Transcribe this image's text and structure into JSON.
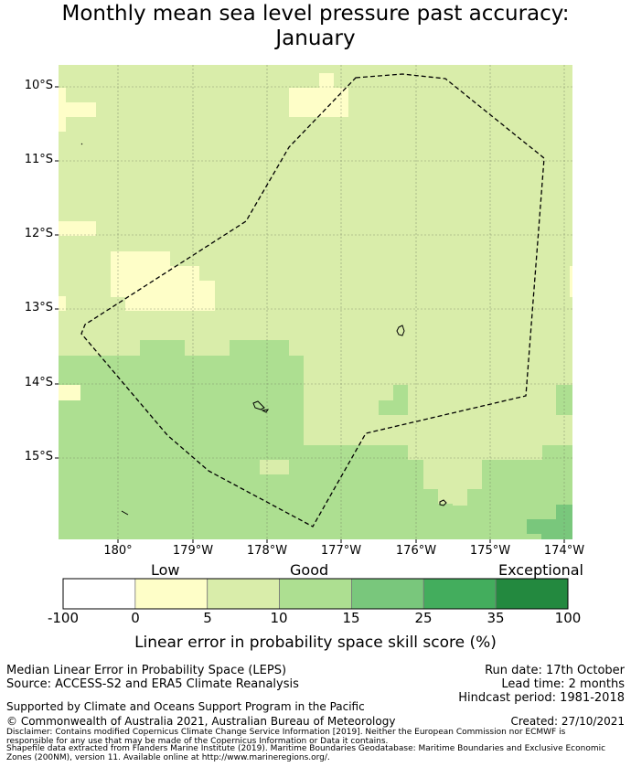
{
  "title_line1": "Monthly mean sea level pressure past accuracy:",
  "title_line2": "January",
  "map": {
    "lat_labels": [
      "10°S",
      "11°S",
      "12°S",
      "13°S",
      "14°S",
      "15°S"
    ],
    "lon_labels": [
      "180°",
      "179°W",
      "178°W",
      "177°W",
      "176°W",
      "175°W",
      "174°W"
    ],
    "colors": {
      "low": "#fefec8",
      "good": "#d9edaa",
      "good_plus": "#addf91",
      "strong": "#79c77c",
      "exceptional": "#23893f"
    }
  },
  "colorbar": {
    "category_labels": [
      "Low",
      "Good",
      "Exceptional"
    ],
    "tick_labels": [
      "-100",
      "0",
      "5",
      "10",
      "15",
      "25",
      "35",
      "100"
    ],
    "label": "Linear error in probability space skill score (%)",
    "colors": [
      "#ffffff",
      "#fefec8",
      "#d9edaa",
      "#addf91",
      "#79c77c",
      "#43ad5d",
      "#23893f"
    ]
  },
  "footer": {
    "method": "Median Linear Error in Probability Space (LEPS)",
    "source": "Source: ACCESS-S2 and ERA5 Climate Reanalysis",
    "run_date": "Run date: 17th October",
    "lead_time": "Lead time: 2 months",
    "hindcast": "Hindcast period: 1981-2018",
    "support": "Supported by Climate and Oceans Support Program in the Pacific",
    "copyright": "© Commonwealth of Australia 2021, Australian Bureau of Meteorology",
    "created": "Created: 27/10/2021",
    "disclaimer1": "Disclaimer: Contains modified Copernicus Climate Change Service Information [2019]. Neither the European Commission nor ECMWF is",
    "disclaimer2": "responsible for any use that may be made of the Copernicus Information or Data it contains.",
    "disclaimer3": "Shapefile data extracted from Flanders Marine Institute (2019). Maritime Boundaries Geodatabase: Maritime Boundaries and Exclusive Economic",
    "disclaimer4": "Zones (200NM), version 11. Available online at http://www.marineregions.org/."
  }
}
